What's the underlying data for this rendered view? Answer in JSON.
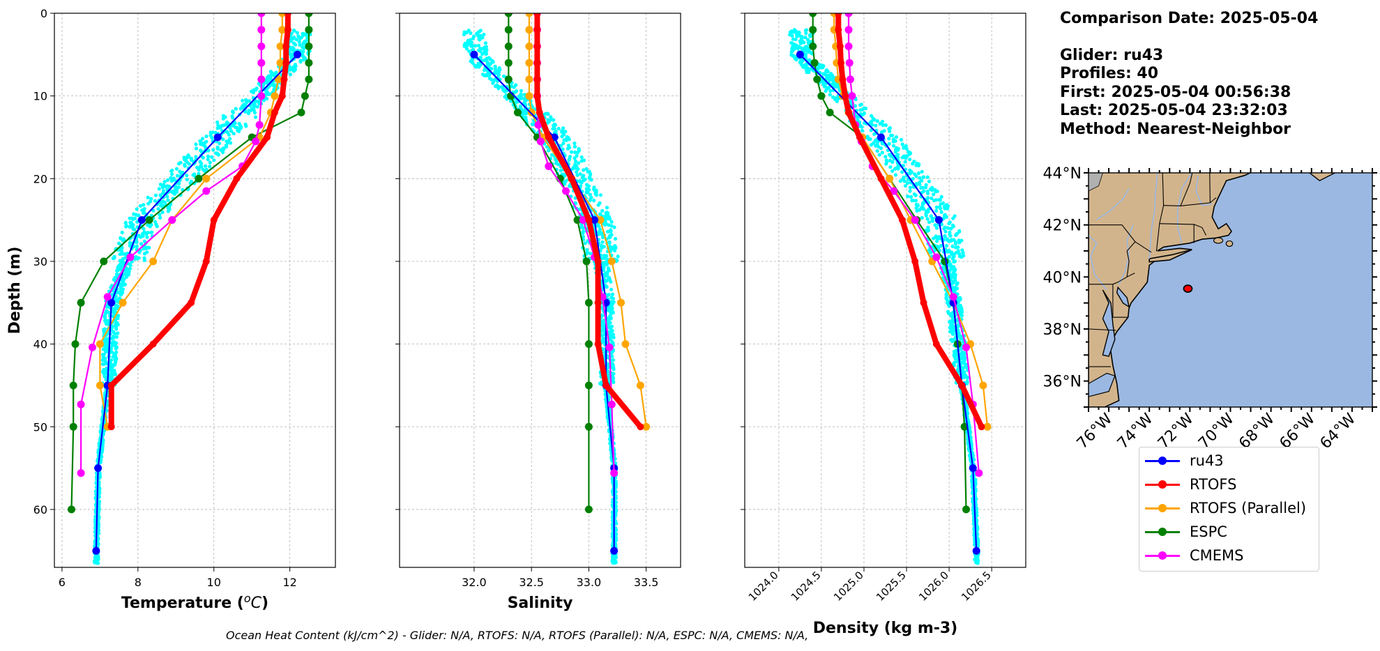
{
  "info": {
    "date_line": "Comparison Date: 2025-05-04",
    "glider_line": "Glider: ru43",
    "profiles_line": "Profiles: 40",
    "first_line": "First: 2025-05-04 00:56:38",
    "last_line": "Last: 2025-05-04 23:32:03",
    "method_line": "Method: Nearest-Neighbor"
  },
  "footer": "Ocean Heat Content (kJ/cm^2) - Glider: N/A,  RTOFS: N/A,  RTOFS (Parallel): N/A,  ESPC: N/A,  CMEMS: N/A,",
  "colors": {
    "ru43": "#0000ff",
    "RTOFS": "#ff0000",
    "RTOFS (Parallel)": "#ffa500",
    "ESPC": "#008000",
    "CMEMS": "#ff00ff",
    "glider_raw": "#00ffff",
    "land": "#d2b48c",
    "ocean": "#9ab8e2"
  },
  "legend": [
    "ru43",
    "RTOFS",
    "RTOFS (Parallel)",
    "ESPC",
    "CMEMS"
  ],
  "chart_data": [
    {
      "type": "line",
      "title": "",
      "xlabel": "Temperature (°C)",
      "ylabel": "Depth (m)",
      "xlim": [
        5.8,
        13.2
      ],
      "ylim": [
        67,
        0
      ],
      "xticks": [
        6,
        8,
        10,
        12
      ],
      "yticks": [
        0,
        10,
        20,
        30,
        40,
        50,
        60
      ],
      "grid": true,
      "series": [
        {
          "name": "ru43",
          "depth": [
            5,
            15,
            25,
            35,
            45,
            55,
            65
          ],
          "values": [
            12.2,
            10.1,
            8.1,
            7.3,
            7.2,
            6.95,
            6.9
          ]
        },
        {
          "name": "RTOFS",
          "depth": [
            0,
            2,
            4,
            6,
            8,
            10,
            12,
            15,
            20,
            25,
            30,
            35,
            40,
            45,
            50
          ],
          "values": [
            11.95,
            11.95,
            11.9,
            11.9,
            11.85,
            11.8,
            11.6,
            11.4,
            10.6,
            10.0,
            9.8,
            9.4,
            8.4,
            7.3,
            7.3
          ]
        },
        {
          "name": "RTOFS (Parallel)",
          "depth": [
            0,
            2,
            4,
            6,
            8,
            10,
            12,
            15,
            20,
            25,
            30,
            35,
            40,
            45,
            50
          ],
          "values": [
            11.8,
            11.8,
            11.75,
            11.75,
            11.7,
            11.6,
            11.5,
            11.2,
            9.8,
            8.9,
            8.4,
            7.6,
            7.0,
            7.0,
            7.2
          ]
        },
        {
          "name": "ESPC",
          "depth": [
            0,
            2,
            4,
            6,
            8,
            10,
            12,
            15,
            20,
            25,
            30,
            35,
            40,
            45,
            50,
            60
          ],
          "values": [
            12.5,
            12.5,
            12.5,
            12.5,
            12.5,
            12.4,
            12.3,
            11.0,
            9.6,
            8.3,
            7.1,
            6.5,
            6.35,
            6.3,
            6.3,
            6.25
          ]
        },
        {
          "name": "CMEMS",
          "depth": [
            0,
            2,
            4,
            6,
            8,
            10,
            13.5,
            15.5,
            18.5,
            21.5,
            25,
            29.5,
            34.3,
            40.4,
            47.3,
            55.6
          ],
          "values": [
            11.25,
            11.25,
            11.25,
            11.25,
            11.25,
            11.25,
            11.2,
            11.1,
            10.75,
            9.8,
            8.9,
            7.8,
            7.2,
            6.8,
            6.5,
            6.5
          ]
        }
      ]
    },
    {
      "type": "line",
      "title": "",
      "xlabel": "Salinity",
      "ylabel": "",
      "xlim": [
        31.35,
        33.8
      ],
      "ylim": [
        67,
        0
      ],
      "xticks": [
        32.0,
        32.5,
        33.0,
        33.5
      ],
      "yticks": [
        0,
        10,
        20,
        30,
        40,
        50,
        60
      ],
      "grid": true,
      "series": [
        {
          "name": "ru43",
          "depth": [
            5,
            15,
            25,
            35,
            45,
            55,
            65
          ],
          "values": [
            32.0,
            32.7,
            33.05,
            33.15,
            33.15,
            33.22,
            33.22
          ]
        },
        {
          "name": "RTOFS",
          "depth": [
            0,
            2,
            4,
            6,
            8,
            10,
            12,
            15,
            20,
            25,
            30,
            35,
            40,
            45,
            50
          ],
          "values": [
            32.55,
            32.55,
            32.55,
            32.55,
            32.55,
            32.55,
            32.57,
            32.65,
            32.85,
            33.0,
            33.08,
            33.08,
            33.08,
            33.15,
            33.45
          ]
        },
        {
          "name": "RTOFS (Parallel)",
          "depth": [
            0,
            2,
            4,
            6,
            8,
            10,
            12,
            15,
            20,
            25,
            30,
            35,
            40,
            45,
            50
          ],
          "values": [
            32.48,
            32.48,
            32.48,
            32.48,
            32.48,
            32.48,
            32.5,
            32.6,
            32.85,
            33.1,
            33.2,
            33.28,
            33.32,
            33.45,
            33.5
          ]
        },
        {
          "name": "ESPC",
          "depth": [
            0,
            2,
            4,
            6,
            8,
            10,
            12,
            15,
            20,
            25,
            30,
            35,
            40,
            45,
            50,
            60
          ],
          "values": [
            32.3,
            32.3,
            32.3,
            32.3,
            32.3,
            32.32,
            32.38,
            32.55,
            32.75,
            32.9,
            32.98,
            33.0,
            33.0,
            33.0,
            33.0,
            33.0
          ]
        },
        {
          "name": "CMEMS",
          "depth": [
            0,
            2,
            4,
            6,
            8,
            10,
            13.5,
            15.5,
            18.5,
            21.5,
            25,
            29.5,
            34.3,
            40.4,
            47.3,
            55.6
          ],
          "values": [
            32.55,
            32.55,
            32.55,
            32.55,
            32.55,
            32.55,
            32.56,
            32.58,
            32.65,
            32.8,
            32.95,
            33.05,
            33.12,
            33.18,
            33.2,
            33.22
          ]
        }
      ]
    },
    {
      "type": "line",
      "title": "",
      "xlabel": "Density (kg m-3)",
      "ylabel": "",
      "xlim": [
        1023.6,
        1026.9
      ],
      "ylim": [
        67,
        0
      ],
      "xticks": [
        1024.0,
        1024.5,
        1025.0,
        1025.5,
        1026.0,
        1026.5
      ],
      "yticks": [
        0,
        10,
        20,
        30,
        40,
        50,
        60
      ],
      "grid": true,
      "series": [
        {
          "name": "ru43",
          "depth": [
            5,
            15,
            25,
            35,
            45,
            55,
            65
          ],
          "values": [
            1024.25,
            1025.2,
            1025.88,
            1026.05,
            1026.15,
            1026.28,
            1026.32
          ]
        },
        {
          "name": "RTOFS",
          "depth": [
            0,
            2,
            4,
            6,
            8,
            10,
            12,
            15,
            20,
            25,
            30,
            35,
            40,
            45,
            50
          ],
          "values": [
            1024.7,
            1024.7,
            1024.72,
            1024.73,
            1024.75,
            1024.78,
            1024.82,
            1024.95,
            1025.2,
            1025.45,
            1025.6,
            1025.7,
            1025.85,
            1026.15,
            1026.38
          ]
        },
        {
          "name": "RTOFS (Parallel)",
          "depth": [
            0,
            2,
            4,
            6,
            8,
            10,
            12,
            15,
            20,
            25,
            30,
            35,
            40,
            45,
            50
          ],
          "values": [
            1024.65,
            1024.65,
            1024.67,
            1024.68,
            1024.7,
            1024.75,
            1024.82,
            1024.98,
            1025.3,
            1025.55,
            1025.8,
            1026.05,
            1026.25,
            1026.4,
            1026.45
          ]
        },
        {
          "name": "ESPC",
          "depth": [
            0,
            2,
            4,
            6,
            8,
            10,
            12,
            15,
            20,
            25,
            30,
            35,
            40,
            45,
            50,
            60
          ],
          "values": [
            1024.4,
            1024.4,
            1024.4,
            1024.42,
            1024.45,
            1024.5,
            1024.6,
            1024.98,
            1025.3,
            1025.62,
            1025.95,
            1026.05,
            1026.1,
            1026.15,
            1026.18,
            1026.2
          ]
        },
        {
          "name": "CMEMS",
          "depth": [
            0,
            2,
            4,
            6,
            8,
            10,
            13.5,
            15.5,
            18.5,
            21.5,
            25,
            29.5,
            34.3,
            40.4,
            47.3,
            55.6
          ],
          "values": [
            1024.82,
            1024.82,
            1024.82,
            1024.83,
            1024.84,
            1024.86,
            1024.9,
            1024.97,
            1025.1,
            1025.35,
            1025.6,
            1025.85,
            1026.05,
            1026.2,
            1026.28,
            1026.35
          ]
        }
      ]
    }
  ],
  "map": {
    "lon_range": [
      -77,
      -63
    ],
    "lat_range": [
      35,
      44
    ],
    "xtick_labels": [
      "76°W",
      "74°W",
      "72°W",
      "70°W",
      "68°W",
      "66°W",
      "64°W"
    ],
    "ytick_labels": [
      "44°N",
      "42°N",
      "40°N",
      "38°N",
      "36°N"
    ],
    "glider_position": {
      "lon": -72.1,
      "lat": 39.55
    }
  }
}
